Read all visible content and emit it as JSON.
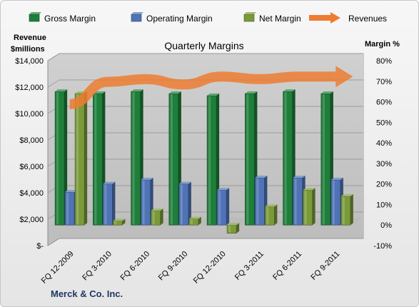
{
  "chart_data": {
    "type": "bar",
    "title": "Quarterly Margins",
    "company": "Merck & Co. Inc.",
    "left_axis_label": [
      "Revenue",
      "$millions"
    ],
    "right_axis_label": "Margin %",
    "categories": [
      "FQ 12-2009",
      "FQ 3-2010",
      "FQ 6-2010",
      "FQ 9-2010",
      "FQ 12-2010",
      "FQ 3-2011",
      "FQ 6-2011",
      "FQ 9-2011"
    ],
    "series": [
      {
        "name": "Gross Margin",
        "type": "bar",
        "axis": "right",
        "color": "#1e7e3a",
        "values": [
          65,
          64,
          65,
          64,
          63,
          64,
          65,
          64
        ]
      },
      {
        "name": "Operating Margin",
        "type": "bar",
        "axis": "right",
        "color": "#4f73b5",
        "values": [
          16,
          20,
          22,
          20,
          17,
          23,
          23,
          22
        ]
      },
      {
        "name": "Net Margin",
        "type": "bar",
        "axis": "right",
        "color": "#7a9a3a",
        "values": [
          64,
          2,
          7,
          3,
          -4,
          9,
          17,
          14
        ]
      },
      {
        "name": "Revenues",
        "type": "line",
        "axis": "left",
        "color": "#ed7d31",
        "values": [
          10700,
          12400,
          12600,
          12200,
          12800,
          12600,
          12800,
          12800
        ]
      }
    ],
    "left_axis": {
      "min": 0,
      "max": 14000,
      "step": 2000,
      "tick_labels": [
        "$-",
        "$2,000",
        "$4,000",
        "$6,000",
        "$8,000",
        "$10,000",
        "$12,000",
        "$14,000"
      ]
    },
    "right_axis": {
      "min": -10,
      "max": 80,
      "step": 10,
      "tick_labels": [
        "-10%",
        "0%",
        "10%",
        "20%",
        "30%",
        "40%",
        "50%",
        "60%",
        "70%",
        "80%"
      ]
    },
    "grid": true,
    "legend": "top"
  }
}
